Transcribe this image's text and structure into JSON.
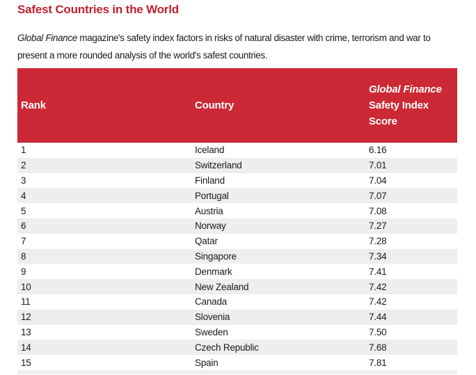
{
  "page": {
    "title": "Safest Countries in the World",
    "intro_italic": "Global Finance",
    "intro_rest": " magazine's safety index factors in risks of natural disaster with crime, terrorism and war to present a more rounded analysis of the world's safest countries."
  },
  "colors": {
    "title_red": "#c02130",
    "header_red": "#cd2835",
    "header_border": "#a91d29",
    "row_alt_gray": "#eeeeee",
    "body_text": "#1a1a1a",
    "header_text": "#ffffff"
  },
  "table": {
    "headers": {
      "rank": "Rank",
      "country": "Country",
      "score_line1": "Global Finance",
      "score_line2": "Safety Index",
      "score_line3": "Score"
    },
    "rows": [
      {
        "rank": "1",
        "country": "Iceland",
        "score": "6.16"
      },
      {
        "rank": "2",
        "country": "Switzerland",
        "score": "7.01"
      },
      {
        "rank": "3",
        "country": "Finland",
        "score": "7.04"
      },
      {
        "rank": "4",
        "country": "Portugal",
        "score": "7.07"
      },
      {
        "rank": "5",
        "country": "Austria",
        "score": "7.08"
      },
      {
        "rank": "6",
        "country": "Norway",
        "score": "7.27"
      },
      {
        "rank": "7",
        "country": "Qatar",
        "score": "7.28"
      },
      {
        "rank": "8",
        "country": "Singapore",
        "score": "7.34"
      },
      {
        "rank": "9",
        "country": "Denmark",
        "score": "7.41"
      },
      {
        "rank": "10",
        "country": "New Zealand",
        "score": "7.42"
      },
      {
        "rank": "11",
        "country": "Canada",
        "score": "7.42"
      },
      {
        "rank": "12",
        "country": "Slovenia",
        "score": "7.44"
      },
      {
        "rank": "13",
        "country": "Sweden",
        "score": "7.50"
      },
      {
        "rank": "14",
        "country": "Czech Republic",
        "score": "7.68"
      },
      {
        "rank": "15",
        "country": "Spain",
        "score": "7.81"
      }
    ]
  },
  "chart_data": {
    "type": "table",
    "title": "Safest Countries in the World",
    "columns": [
      "Rank",
      "Country",
      "Global Finance Safety Index Score"
    ],
    "rows": [
      [
        1,
        "Iceland",
        6.16
      ],
      [
        2,
        "Switzerland",
        7.01
      ],
      [
        3,
        "Finland",
        7.04
      ],
      [
        4,
        "Portugal",
        7.07
      ],
      [
        5,
        "Austria",
        7.08
      ],
      [
        6,
        "Norway",
        7.27
      ],
      [
        7,
        "Qatar",
        7.28
      ],
      [
        8,
        "Singapore",
        7.34
      ],
      [
        9,
        "Denmark",
        7.41
      ],
      [
        10,
        "New Zealand",
        7.42
      ],
      [
        11,
        "Canada",
        7.42
      ],
      [
        12,
        "Slovenia",
        7.44
      ],
      [
        13,
        "Sweden",
        7.5
      ],
      [
        14,
        "Czech Republic",
        7.68
      ],
      [
        15,
        "Spain",
        7.81
      ]
    ]
  }
}
